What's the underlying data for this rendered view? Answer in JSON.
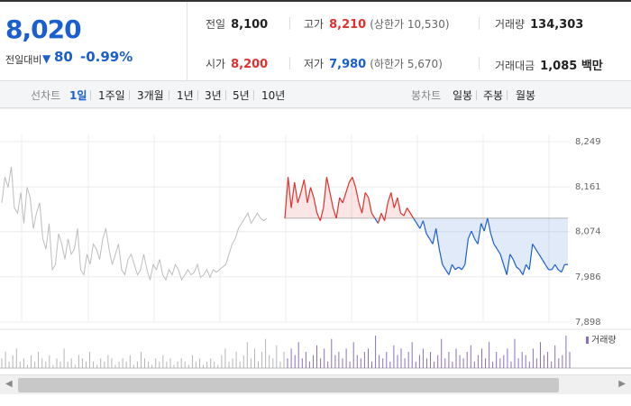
{
  "quote": {
    "price": "8,020",
    "change_label": "전일대비",
    "change_arrow": "▼",
    "change_value": "80",
    "change_pct": "-0.99%"
  },
  "stats": {
    "prev_close": {
      "label": "전일",
      "value": "8,100"
    },
    "high": {
      "label": "고가",
      "value": "8,210",
      "sub": "(상한가 10,530)"
    },
    "volume": {
      "label": "거래량",
      "value": "134,303"
    },
    "open": {
      "label": "시가",
      "value": "8,200"
    },
    "low": {
      "label": "저가",
      "value": "7,980",
      "sub": "(하한가 5,670)"
    },
    "amount": {
      "label": "거래대금",
      "value": "1,085 백만"
    }
  },
  "line_tabs": {
    "title": "선차트",
    "items": [
      "1일",
      "1주일",
      "3개월",
      "1년",
      "3년",
      "5년",
      "10년"
    ],
    "selected": 0
  },
  "candle_tabs": {
    "title": "봉차트",
    "items": [
      "일봉",
      "주봉",
      "월봉"
    ]
  },
  "colors": {
    "up": "#e0302e",
    "down": "#1a5fd1",
    "accent": "#1a5fd1",
    "volume": "#8a6fbf",
    "prev_day": "#bdbdbd"
  },
  "chart_data": {
    "type": "line",
    "ylim": [
      7898,
      8249
    ],
    "yticks": [
      "8,249",
      "8,161",
      "8,074",
      "7,986",
      "7,898"
    ],
    "ytick_values": [
      8249,
      8161,
      8074,
      7986,
      7898
    ],
    "baseline": 8100,
    "legend": "거래량",
    "grid": true,
    "series": [
      {
        "values": [
          8130,
          8180,
          8160,
          8200,
          8120,
          8110,
          8150,
          8090,
          8160,
          8140,
          8080,
          8110,
          8130,
          8060,
          8040,
          8090,
          8000,
          8010,
          8070,
          8050,
          8020,
          8060,
          8030,
          8040,
          8080,
          8000,
          7990,
          8030,
          8010,
          8050,
          8040,
          8020,
          8060,
          8080,
          8040,
          8010,
          8030,
          8050,
          8000,
          7990,
          8020,
          8030,
          8010,
          7990,
          8000,
          8030,
          8000,
          7980,
          8010,
          8000,
          8020,
          7990,
          7980,
          8000,
          7990,
          8010,
          8000,
          7980,
          7990,
          8000,
          7990,
          7995,
          8010,
          7985,
          7990,
          8000,
          7985,
          8000,
          7995,
          8000,
          8005,
          8010,
          8030,
          8050,
          8060,
          8080,
          8090,
          8100,
          8110,
          8090,
          8100,
          8110,
          8100,
          8095,
          8100
        ]
      },
      {
        "values": [
          8100,
          8180,
          8120,
          8170,
          8130,
          8150,
          8175,
          8130,
          8160,
          8140,
          8110,
          8095,
          8120,
          8180,
          8150,
          8120,
          8100,
          8140,
          8130,
          8150,
          8170,
          8180,
          8160,
          8130,
          8110,
          8150,
          8140,
          8110,
          8100,
          8090,
          8110,
          8095,
          8130,
          8150,
          8120,
          8140,
          8110,
          8105,
          8120,
          8110,
          8100,
          8090,
          8080,
          8095,
          8070,
          8060,
          8050,
          8080,
          8040,
          8010,
          8000,
          7990,
          8010,
          8000,
          8005,
          8000,
          8010,
          8060,
          8075,
          8060,
          8050,
          8090,
          8075,
          8100,
          8070,
          8050,
          8040,
          8030,
          8010,
          7990,
          8030,
          8020,
          8005,
          8000,
          7990,
          8010,
          8000,
          8050,
          8040,
          8030,
          8020,
          8010,
          8000,
          8000,
          8010,
          8000,
          7995,
          8010,
          8010
        ]
      }
    ],
    "volume_values": [
      3,
      5,
      2,
      4,
      6,
      2,
      3,
      1,
      4,
      2,
      5,
      3,
      2,
      4,
      1,
      3,
      2,
      6,
      2,
      3,
      1,
      4,
      3,
      2,
      5,
      2,
      1,
      3,
      2,
      4,
      3,
      1,
      2,
      3,
      2,
      4,
      1,
      2,
      5,
      3,
      2,
      1,
      3,
      2,
      4,
      2,
      3,
      1,
      2,
      3,
      2,
      1,
      4,
      2,
      3,
      1,
      2,
      3,
      2,
      1,
      4,
      6,
      2,
      3,
      5,
      2,
      4,
      8,
      3,
      6,
      2,
      5,
      9,
      4,
      3,
      7,
      2,
      5,
      3,
      6,
      4,
      8,
      3,
      5,
      2,
      4,
      7,
      3,
      6,
      2,
      9,
      4,
      5,
      3,
      6,
      2,
      8,
      4,
      3,
      5,
      6,
      2,
      10,
      4,
      3,
      5,
      2,
      7,
      4,
      6,
      3,
      5,
      8,
      2,
      4,
      6,
      3,
      5,
      2,
      4,
      9,
      3,
      5,
      2,
      6,
      4,
      3,
      5,
      7,
      2,
      4,
      6,
      3,
      8,
      2,
      5,
      3,
      4,
      6,
      2,
      9,
      3,
      5,
      4,
      2,
      6,
      3,
      8,
      4,
      5,
      2,
      7,
      3,
      4,
      10,
      5
    ]
  }
}
